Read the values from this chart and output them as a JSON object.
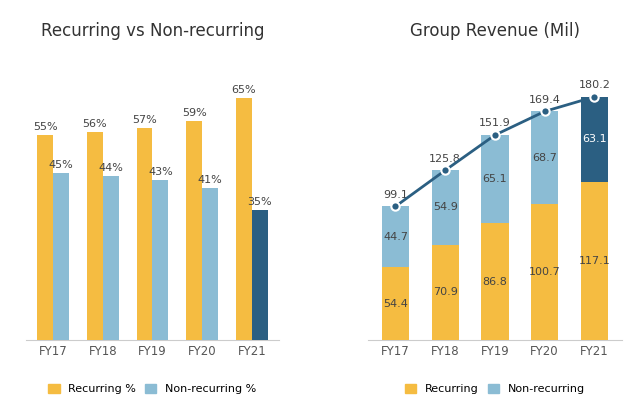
{
  "left_title": "Recurring vs Non-recurring",
  "right_title": "Group Revenue (Mil)",
  "years": [
    "FY17",
    "FY18",
    "FY19",
    "FY20",
    "FY21"
  ],
  "recurring_pct": [
    55,
    56,
    57,
    59,
    65
  ],
  "nonrecurring_pct": [
    45,
    44,
    43,
    41,
    35
  ],
  "recurring_val": [
    54.4,
    70.9,
    86.8,
    100.7,
    117.1
  ],
  "nonrecurring_val": [
    44.7,
    54.9,
    65.1,
    68.7,
    63.1
  ],
  "total_val": [
    99.1,
    125.8,
    151.9,
    169.4,
    180.2
  ],
  "color_yellow": "#F5BC41",
  "color_blue_light": "#8BBCD4",
  "color_blue_dark": "#2B5F82",
  "color_bg": "#FFFFFF",
  "left_bar_width": 0.32,
  "right_bar_width": 0.55,
  "title_fontsize": 12,
  "label_fontsize": 8,
  "tick_fontsize": 8.5,
  "legend_fontsize": 8
}
